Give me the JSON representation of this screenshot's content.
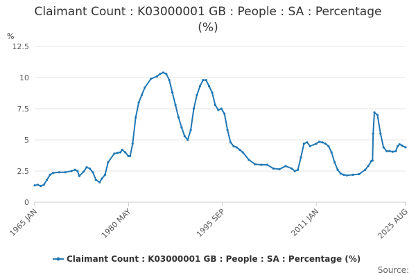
{
  "chart_data": {
    "type": "line",
    "title_line1": "Claimant Count : K03000001 GB : People : SA : Percentage",
    "title_line2": "(%)",
    "ylabel": "%",
    "ylim": [
      0,
      12.5
    ],
    "yticks": [
      0,
      2.5,
      5,
      7.5,
      10,
      12.5
    ],
    "ytick_labels": [
      "0",
      "2.5",
      "5",
      "7.5",
      "10",
      "12.5"
    ],
    "xlim": [
      1965.0,
      2025.6
    ],
    "xticks": [
      {
        "label": "1965 JAN",
        "year": 1965.0
      },
      {
        "label": "1980 MAY",
        "year": 1980.33
      },
      {
        "label": "1995 SEP",
        "year": 1995.67
      },
      {
        "label": "2011 JAN",
        "year": 2011.0
      },
      {
        "label": "2025 AUG",
        "year": 2025.58
      }
    ],
    "grid": true,
    "legend_position": "bottom",
    "series": [
      {
        "name": "Claimant Count : K03000001 GB : People : SA : Percentage (%)",
        "color": "#1f77b4",
        "x": [
          1965.0,
          1965.5,
          1966.0,
          1966.5,
          1967.0,
          1967.5,
          1968.0,
          1969.0,
          1970.0,
          1971.0,
          1971.6,
          1972.0,
          1972.3,
          1973.0,
          1973.5,
          1974.0,
          1974.5,
          1975.0,
          1975.6,
          1976.0,
          1976.5,
          1977.0,
          1978.0,
          1978.5,
          1979.0,
          1979.3,
          1979.8,
          1980.3,
          1980.6,
          1981.0,
          1981.5,
          1982.0,
          1982.5,
          1983.0,
          1984.0,
          1985.0,
          1985.5,
          1986.0,
          1986.5,
          1987.0,
          1987.5,
          1988.0,
          1988.5,
          1989.0,
          1989.5,
          1990.0,
          1990.5,
          1991.0,
          1991.5,
          1992.0,
          1992.5,
          1993.0,
          1993.5,
          1994.0,
          1994.5,
          1995.0,
          1995.5,
          1996.0,
          1996.5,
          1997.0,
          1997.5,
          1998.0,
          1998.5,
          1999.0,
          2000.0,
          2001.0,
          2002.0,
          2003.0,
          2004.0,
          2005.0,
          2006.0,
          2007.0,
          2007.5,
          2008.0,
          2008.5,
          2009.0,
          2009.5,
          2010.0,
          2011.0,
          2011.5,
          2012.0,
          2012.5,
          2013.0,
          2013.5,
          2014.0,
          2014.5,
          2015.0,
          2015.5,
          2016.0,
          2017.0,
          2018.0,
          2019.0,
          2019.5,
          2020.0,
          2020.2,
          2020.3,
          2020.5,
          2021.0,
          2021.5,
          2022.0,
          2022.5,
          2023.0,
          2023.5,
          2024.0,
          2024.3,
          2024.6,
          2025.0,
          2025.6
        ],
        "y": [
          1.35,
          1.4,
          1.3,
          1.4,
          1.8,
          2.2,
          2.35,
          2.4,
          2.4,
          2.5,
          2.6,
          2.5,
          2.1,
          2.45,
          2.8,
          2.7,
          2.4,
          1.8,
          1.6,
          1.9,
          2.2,
          3.2,
          3.9,
          3.95,
          4.0,
          4.2,
          4.0,
          3.7,
          3.7,
          4.7,
          6.8,
          8.0,
          8.6,
          9.2,
          9.9,
          10.1,
          10.3,
          10.4,
          10.3,
          9.8,
          8.8,
          7.8,
          6.8,
          6.0,
          5.3,
          5.0,
          5.8,
          7.5,
          8.6,
          9.3,
          9.8,
          9.8,
          9.3,
          8.8,
          7.8,
          7.4,
          7.5,
          7.1,
          5.8,
          4.8,
          4.5,
          4.4,
          4.2,
          4.0,
          3.4,
          3.05,
          3.0,
          3.0,
          2.7,
          2.65,
          2.9,
          2.7,
          2.5,
          2.6,
          3.6,
          4.7,
          4.8,
          4.5,
          4.7,
          4.85,
          4.8,
          4.7,
          4.5,
          4.0,
          3.2,
          2.6,
          2.3,
          2.2,
          2.15,
          2.2,
          2.25,
          2.6,
          2.9,
          3.3,
          3.35,
          5.5,
          7.2,
          7.0,
          5.5,
          4.4,
          4.1,
          4.1,
          4.05,
          4.1,
          4.5,
          4.65,
          4.55,
          4.4
        ]
      }
    ],
    "legend_label": "Claimant Count : K03000001 GB : People : SA : Percentage (%)",
    "source_label": "Source:"
  }
}
